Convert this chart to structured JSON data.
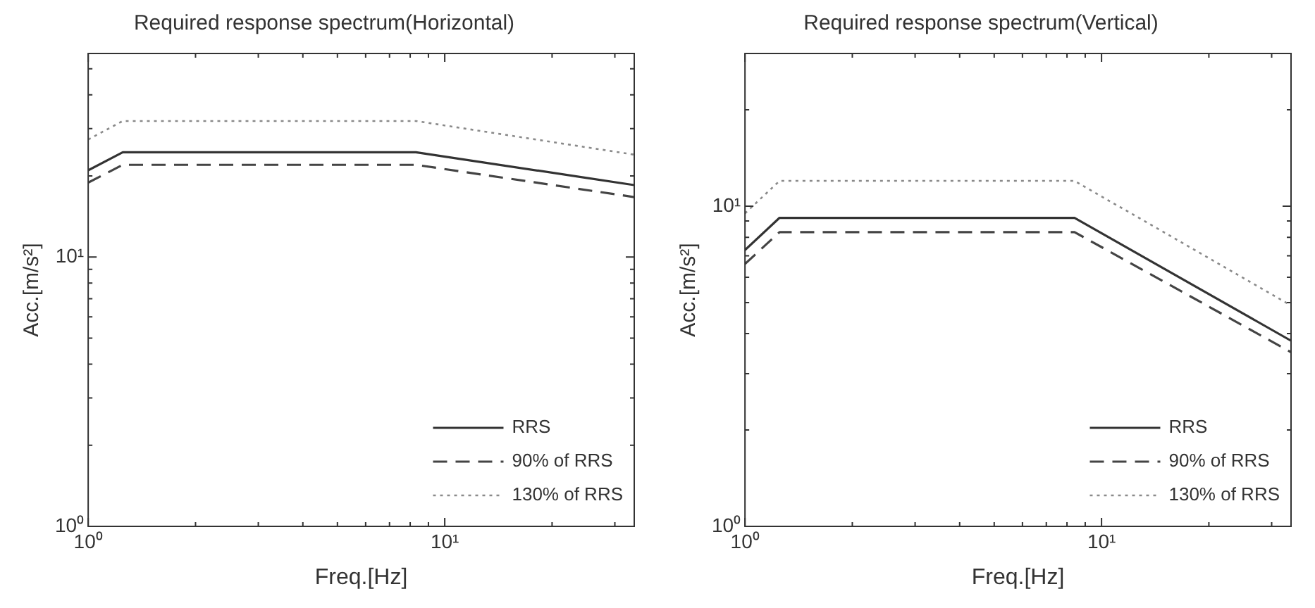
{
  "chart_data": [
    {
      "type": "line",
      "title": "Required response spectrum(Horizontal)",
      "xlabel": "Freq.[Hz]",
      "ylabel": "Acc.[m/s²]",
      "log": "xy",
      "grid": false,
      "legend": "bottom right",
      "marker": "none",
      "xlim": [
        1,
        34
      ],
      "ylim": [
        1,
        57
      ],
      "xticks": [
        {
          "value": 1,
          "label": "10⁰"
        },
        {
          "value": 2,
          "label": null
        },
        {
          "value": 3,
          "label": null
        },
        {
          "value": 4,
          "label": null
        },
        {
          "value": 5,
          "label": null
        },
        {
          "value": 6,
          "label": null
        },
        {
          "value": 7,
          "label": null
        },
        {
          "value": 8,
          "label": null
        },
        {
          "value": 9,
          "label": null
        },
        {
          "value": 10,
          "label": "10¹"
        },
        {
          "value": 20,
          "label": null
        },
        {
          "value": 30,
          "label": null
        }
      ],
      "yticks": [
        {
          "value": 1,
          "label": "10⁰"
        },
        {
          "value": 2,
          "label": null
        },
        {
          "value": 3,
          "label": null
        },
        {
          "value": 4,
          "label": null
        },
        {
          "value": 5,
          "label": null
        },
        {
          "value": 6,
          "label": null
        },
        {
          "value": 7,
          "label": null
        },
        {
          "value": 8,
          "label": null
        },
        {
          "value": 9,
          "label": null
        },
        {
          "value": 10,
          "label": "10¹"
        },
        {
          "value": 20,
          "label": null
        },
        {
          "value": 30,
          "label": null
        },
        {
          "value": 40,
          "label": null
        },
        {
          "value": 50,
          "label": null
        }
      ],
      "x": [
        1,
        1.25,
        8.3,
        34
      ],
      "series": [
        {
          "name": "RRS",
          "color": "#333333",
          "line_style": "solid",
          "values": [
            21,
            24.5,
            24.5,
            18.5
          ]
        },
        {
          "name": "90% of RRS",
          "color": "#444444",
          "line_style": "dashed",
          "values": [
            18.9,
            22,
            22,
            16.7
          ]
        },
        {
          "name": "130% of RRS",
          "color": "#8a8a8a",
          "line_style": "dotted",
          "values": [
            27.3,
            32,
            32,
            24
          ]
        }
      ]
    },
    {
      "type": "line",
      "title": "Required response spectrum(Vertical)",
      "xlabel": "Freq.[Hz]",
      "ylabel": "Acc.[m/s²]",
      "log": "xy",
      "grid": false,
      "legend": "bottom right",
      "marker": "none",
      "xlim": [
        1,
        34
      ],
      "ylim": [
        1,
        30
      ],
      "xticks": [
        {
          "value": 1,
          "label": "10⁰"
        },
        {
          "value": 2,
          "label": null
        },
        {
          "value": 3,
          "label": null
        },
        {
          "value": 4,
          "label": null
        },
        {
          "value": 5,
          "label": null
        },
        {
          "value": 6,
          "label": null
        },
        {
          "value": 7,
          "label": null
        },
        {
          "value": 8,
          "label": null
        },
        {
          "value": 9,
          "label": null
        },
        {
          "value": 10,
          "label": "10¹"
        },
        {
          "value": 20,
          "label": null
        },
        {
          "value": 30,
          "label": null
        }
      ],
      "yticks": [
        {
          "value": 1,
          "label": "10⁰"
        },
        {
          "value": 2,
          "label": null
        },
        {
          "value": 3,
          "label": null
        },
        {
          "value": 4,
          "label": null
        },
        {
          "value": 5,
          "label": null
        },
        {
          "value": 6,
          "label": null
        },
        {
          "value": 7,
          "label": null
        },
        {
          "value": 8,
          "label": null
        },
        {
          "value": 9,
          "label": null
        },
        {
          "value": 10,
          "label": "10¹"
        },
        {
          "value": 20,
          "label": null
        }
      ],
      "x": [
        1,
        1.25,
        8.4,
        34
      ],
      "series": [
        {
          "name": "RRS",
          "color": "#333333",
          "line_style": "solid",
          "values": [
            7.3,
            9.2,
            9.2,
            3.8
          ]
        },
        {
          "name": "90% of RRS",
          "color": "#444444",
          "line_style": "dashed",
          "values": [
            6.6,
            8.3,
            8.3,
            3.5
          ]
        },
        {
          "name": "130% of RRS",
          "color": "#8a8a8a",
          "line_style": "dotted",
          "values": [
            9.5,
            12,
            12,
            4.9
          ]
        }
      ]
    }
  ]
}
